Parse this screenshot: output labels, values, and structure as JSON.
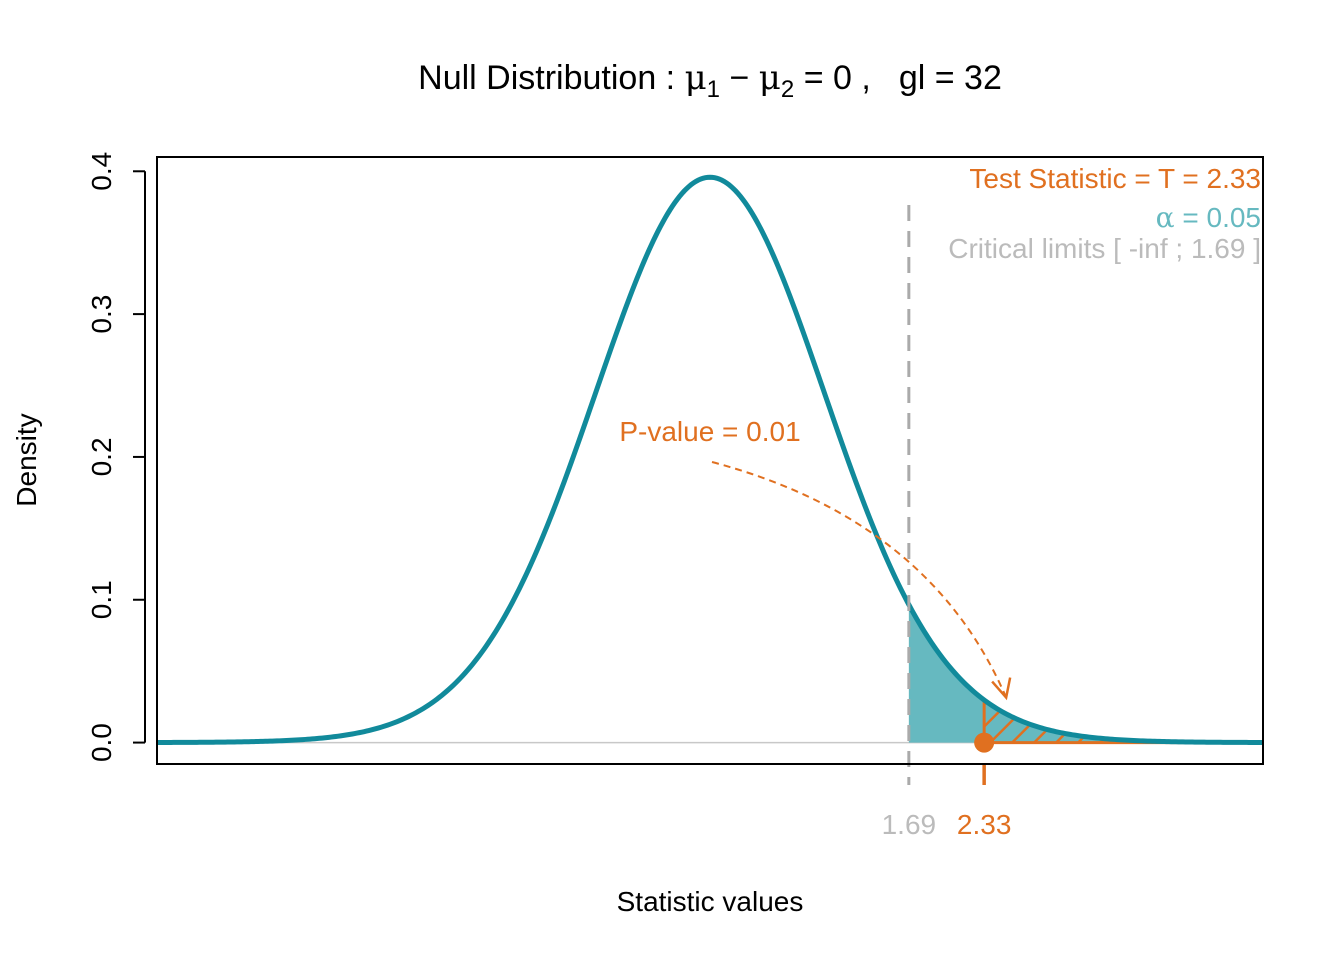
{
  "chart_data": {
    "type": "line",
    "title": {
      "prefix": "Null Distribution : ",
      "mu": "μ",
      "sub1": "1",
      "minus": " − ",
      "sub2": "2",
      "eq_zero": " = 0 ,",
      "df_label": "gl",
      "df_eq": " =  32"
    },
    "xlabel": "Statistic values",
    "ylabel": "Density",
    "xlim": [
      -4.7,
      4.7
    ],
    "ylim": [
      -0.015,
      0.41
    ],
    "y_ticks": [
      0.0,
      0.1,
      0.2,
      0.3,
      0.4
    ],
    "y_tick_labels": [
      "0.0",
      "0.1",
      "0.2",
      "0.3",
      "0.4"
    ],
    "x_ticks": [
      {
        "value": 1.69,
        "label": "1.69",
        "color": "#bbbbbb"
      },
      {
        "value": 2.33,
        "label": "2.33",
        "color": "#e07020"
      }
    ],
    "distribution": {
      "name": "Student t",
      "df": 32
    },
    "critical_value": 1.69,
    "test_statistic": 2.33,
    "alpha": 0.05,
    "p_value": 0.01,
    "annotations": {
      "test_stat": "Test Statistic = T =  2.33",
      "alpha_symbol": "α",
      "alpha_rest": " =  0.05",
      "critical_limits": "Critical limits  [ -inf ; 1.69 ]",
      "pvalue": "P-value = 0.01"
    },
    "colors": {
      "curve": "#118a9b",
      "rejection_fill": "#66b9c0",
      "test_stat": "#e07020",
      "critical": "#aaaaaa",
      "critical_text": "#bbbbbb",
      "alpha_text": "#66b9c0"
    },
    "grid": false,
    "legend": "none"
  }
}
